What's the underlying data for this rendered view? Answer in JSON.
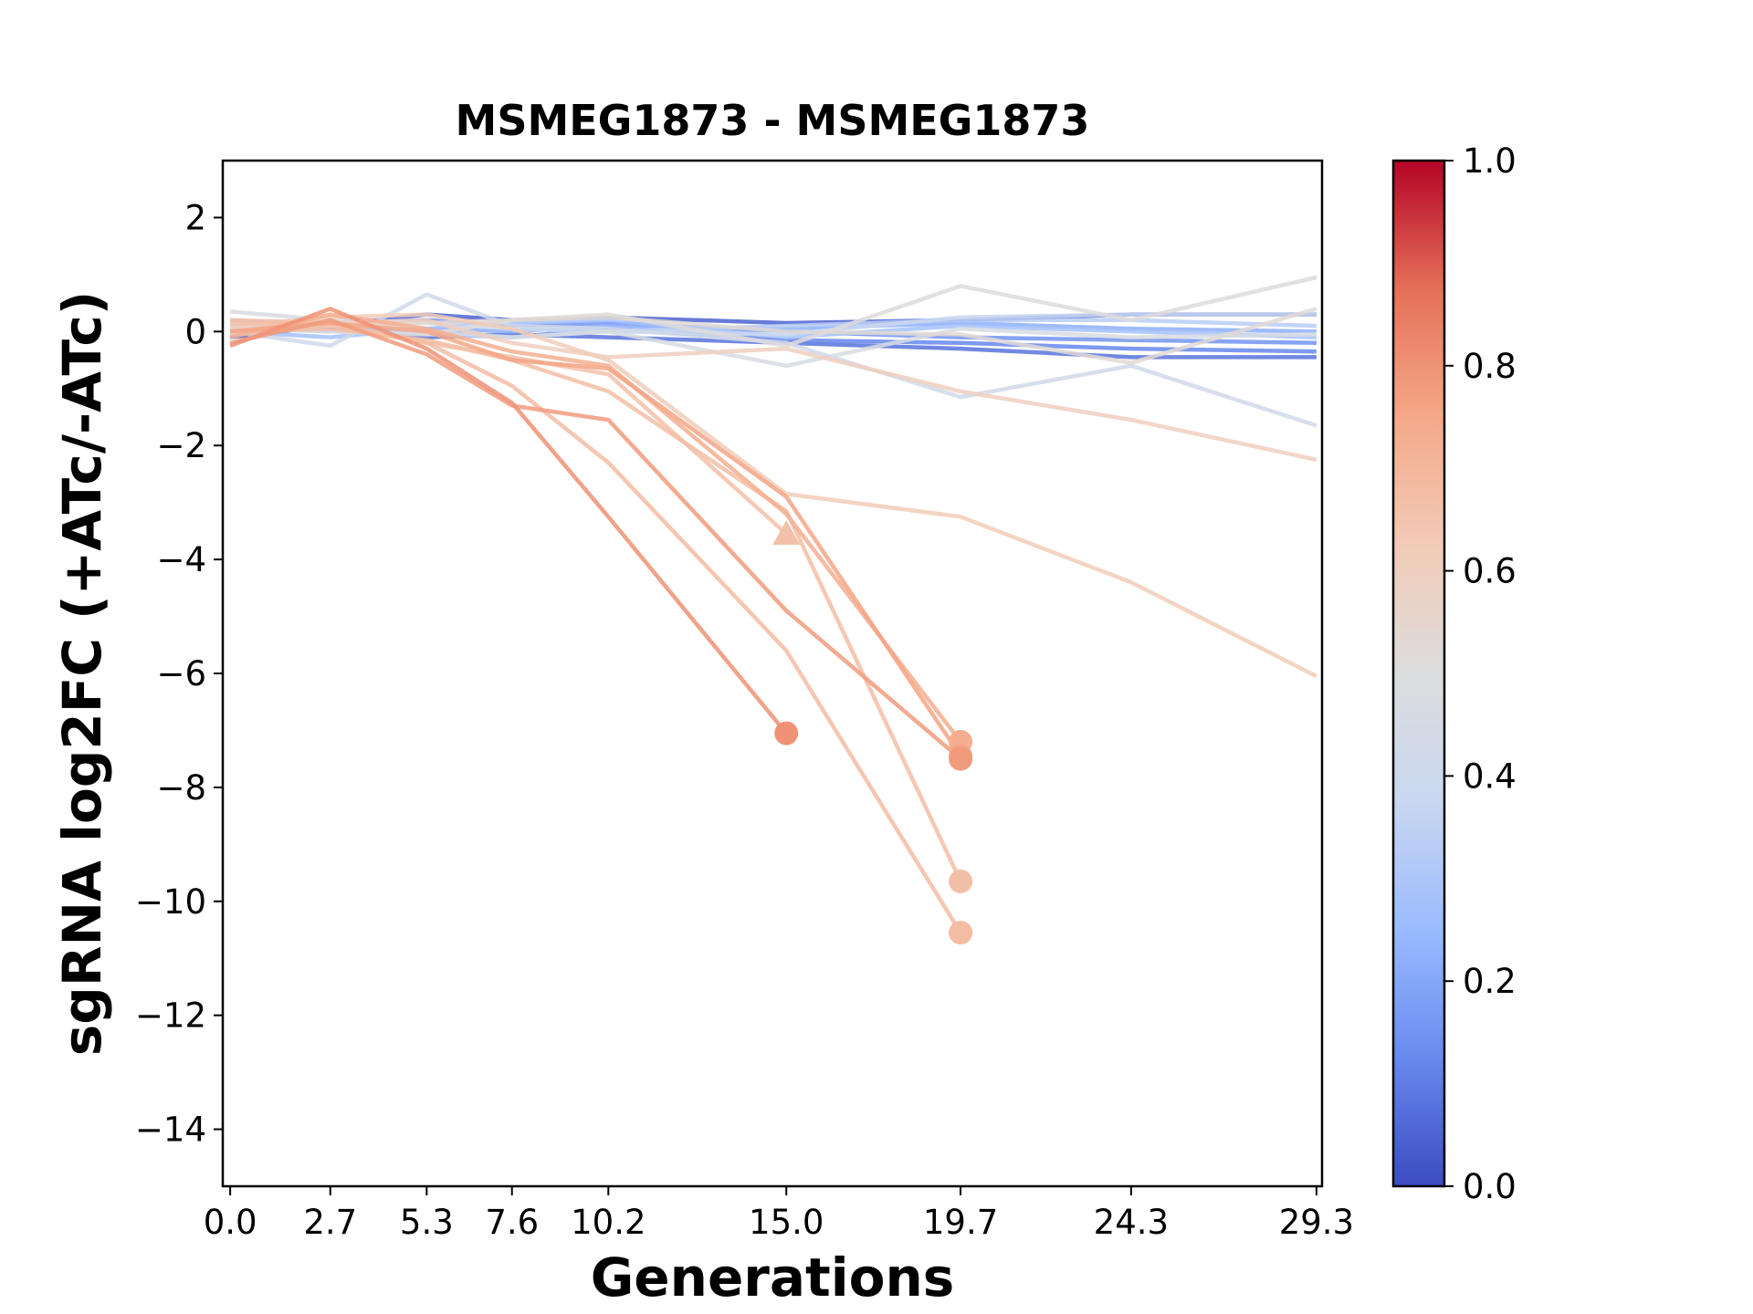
{
  "chart_data": {
    "type": "line",
    "title": "MSMEG1873 - MSMEG1873",
    "xlabel": "Generations",
    "ylabel": "sgRNA log2FC (+ATc/-ATc)",
    "x_ticks": [
      0.0,
      2.7,
      5.3,
      7.6,
      10.2,
      15.0,
      19.7,
      24.3,
      29.3
    ],
    "x_tick_labels": [
      "0.0",
      "2.7",
      "5.3",
      "7.6",
      "10.2",
      "15.0",
      "19.7",
      "24.3",
      "29.3"
    ],
    "xlim": [
      -0.2,
      29.45
    ],
    "y_ticks": [
      2,
      0,
      -2,
      -4,
      -6,
      -8,
      -10,
      -12,
      -14
    ],
    "y_tick_labels": [
      "2",
      "0",
      "−2",
      "−4",
      "−6",
      "−8",
      "−10",
      "−12",
      "−14"
    ],
    "ylim": [
      -15,
      3
    ],
    "colorbar": {
      "range": [
        0.0,
        1.0
      ],
      "ticks": [
        0.0,
        0.2,
        0.4,
        0.6,
        0.8,
        1.0
      ],
      "tick_labels": [
        "0.0",
        "0.2",
        "0.4",
        "0.6",
        "0.8",
        "1.0"
      ],
      "colormap": "coolwarm",
      "stops": [
        "#3b4cc0",
        "#6889ee",
        "#9abbff",
        "#c9d7f0",
        "#dcdddd",
        "#f2cbb7",
        "#f5a889",
        "#e57058",
        "#b40426"
      ]
    },
    "series": [
      {
        "color_value": 0.05,
        "x": [
          0,
          2.7,
          5.3,
          7.6,
          10.2,
          15.0,
          19.7,
          24.3,
          29.3
        ],
        "y": [
          -0.1,
          0.1,
          0.3,
          0.2,
          0.25,
          0.15,
          0.2,
          0.3,
          0.3
        ]
      },
      {
        "color_value": 0.08,
        "x": [
          0,
          2.7,
          5.3,
          7.6,
          10.2,
          15.0,
          19.7,
          24.3,
          29.3
        ],
        "y": [
          0.0,
          0.05,
          -0.1,
          -0.05,
          -0.1,
          -0.2,
          -0.3,
          -0.45,
          -0.45
        ]
      },
      {
        "color_value": 0.12,
        "x": [
          0,
          2.7,
          5.3,
          7.6,
          10.2,
          15.0,
          19.7,
          24.3,
          29.3
        ],
        "y": [
          0.05,
          0.1,
          0.0,
          -0.1,
          0.05,
          -0.15,
          -0.2,
          -0.3,
          -0.35
        ]
      },
      {
        "color_value": 0.15,
        "x": [
          0,
          2.7,
          5.3,
          7.6,
          10.2,
          15.0,
          19.7,
          24.3,
          29.3
        ],
        "y": [
          -0.05,
          0.15,
          0.2,
          0.1,
          0.15,
          0.0,
          -0.1,
          -0.15,
          -0.2
        ]
      },
      {
        "color_value": 0.22,
        "x": [
          0,
          2.7,
          5.3,
          7.6,
          10.2,
          15.0,
          19.7,
          24.3,
          29.3
        ],
        "y": [
          0.1,
          0.0,
          0.05,
          0.0,
          0.1,
          0.05,
          0.15,
          0.05,
          0.0
        ]
      },
      {
        "color_value": 0.28,
        "x": [
          0,
          2.7,
          5.3,
          7.6,
          10.2,
          15.0,
          19.7,
          24.3,
          29.3
        ],
        "y": [
          0.0,
          -0.1,
          0.05,
          0.15,
          0.2,
          -0.1,
          0.1,
          0.0,
          -0.1
        ]
      },
      {
        "color_value": 0.33,
        "x": [
          0,
          2.7,
          5.3,
          7.6,
          10.2,
          15.0,
          19.7,
          24.3,
          29.3
        ],
        "y": [
          0.2,
          0.1,
          -0.05,
          -0.1,
          0.0,
          0.1,
          0.2,
          0.2,
          0.1
        ]
      },
      {
        "color_value": 0.38,
        "x": [
          0,
          2.7,
          5.3,
          7.6,
          10.2,
          15.0,
          19.7,
          24.3,
          29.3
        ],
        "y": [
          0.1,
          0.2,
          0.15,
          0.05,
          0.0,
          -0.05,
          0.25,
          0.3,
          0.3
        ]
      },
      {
        "color_value": 0.42,
        "x": [
          0,
          2.7,
          5.3,
          7.6,
          10.2,
          15.0,
          19.7,
          24.3,
          29.3
        ],
        "y": [
          0.0,
          -0.25,
          0.65,
          0.1,
          0.05,
          -0.2,
          -1.15,
          -0.6,
          -1.65
        ]
      },
      {
        "color_value": 0.47,
        "x": [
          0,
          2.7,
          5.3,
          7.6,
          10.2,
          15.0,
          19.7,
          24.3,
          29.3
        ],
        "y": [
          0.35,
          0.2,
          0.0,
          -0.1,
          0.0,
          -0.6,
          0.05,
          -0.1,
          -0.05
        ]
      },
      {
        "color_value": 0.51,
        "x": [
          0,
          2.7,
          5.3,
          7.6,
          10.2,
          15.0,
          19.7,
          24.3,
          29.3
        ],
        "y": [
          0.05,
          0.0,
          -0.05,
          0.2,
          0.3,
          -0.25,
          0.8,
          0.2,
          0.95
        ]
      },
      {
        "color_value": 0.53,
        "x": [
          0,
          2.7,
          5.3,
          7.6,
          10.2,
          15.0,
          19.7,
          24.3,
          29.3
        ],
        "y": [
          -0.05,
          0.1,
          0.15,
          0.2,
          0.25,
          0.0,
          -0.05,
          -0.55,
          0.4
        ]
      },
      {
        "color_value": 0.6,
        "x": [
          0,
          2.7,
          5.3,
          7.6,
          10.2,
          15.0,
          19.7,
          24.3,
          29.3
        ],
        "y": [
          0.05,
          0.15,
          0.2,
          -0.2,
          -0.45,
          -0.3,
          -1.05,
          -1.55,
          -2.25
        ]
      },
      {
        "color_value": 0.62,
        "x": [
          0,
          2.7,
          5.3,
          7.6,
          10.2,
          15.0,
          19.7,
          24.3,
          29.3
        ],
        "y": [
          0.1,
          0.25,
          0.3,
          0.05,
          -0.5,
          -2.85,
          -3.25,
          -4.4,
          -6.05
        ]
      },
      {
        "color_value": 0.66,
        "x": [
          0,
          2.7,
          5.3,
          7.6,
          10.2,
          15.0
        ],
        "y": [
          0.15,
          0.1,
          -0.2,
          -0.45,
          -0.75,
          -3.55
        ],
        "end_marker": "triangle"
      },
      {
        "color_value": 0.67,
        "x": [
          0,
          2.7,
          5.3,
          7.6,
          10.2,
          15.0,
          19.7
        ],
        "y": [
          0.0,
          0.05,
          -0.15,
          -0.5,
          -1.05,
          -3.15,
          -9.65
        ],
        "end_marker": "circle"
      },
      {
        "color_value": 0.68,
        "x": [
          0,
          2.7,
          5.3,
          7.6,
          10.2,
          15.0,
          19.7
        ],
        "y": [
          0.2,
          0.15,
          -0.2,
          -0.95,
          -2.3,
          -5.6,
          -10.55
        ],
        "end_marker": "circle"
      },
      {
        "color_value": 0.73,
        "x": [
          0,
          2.7,
          5.3,
          7.6,
          10.2,
          15.0,
          19.7
        ],
        "y": [
          -0.1,
          0.3,
          0.05,
          -0.35,
          -0.6,
          -3.2,
          -7.2
        ],
        "end_marker": "circle"
      },
      {
        "color_value": 0.76,
        "x": [
          0,
          2.7,
          5.3,
          7.6,
          10.2,
          15.0,
          19.7
        ],
        "y": [
          0.0,
          0.15,
          0.0,
          -0.5,
          -0.65,
          -2.9,
          -7.45
        ],
        "end_marker": "circle"
      },
      {
        "color_value": 0.78,
        "x": [
          0,
          2.7,
          5.3,
          7.6,
          10.2,
          15.0,
          19.7
        ],
        "y": [
          -0.2,
          0.2,
          -0.4,
          -1.3,
          -1.55,
          -4.9,
          -7.5
        ],
        "end_marker": "circle"
      },
      {
        "color_value": 0.8,
        "x": [
          0,
          2.7,
          5.3,
          7.6,
          10.2,
          15.0
        ],
        "y": [
          -0.25,
          0.4,
          -0.3,
          -1.25,
          -3.25,
          -7.05
        ],
        "end_marker": "circle"
      }
    ]
  }
}
